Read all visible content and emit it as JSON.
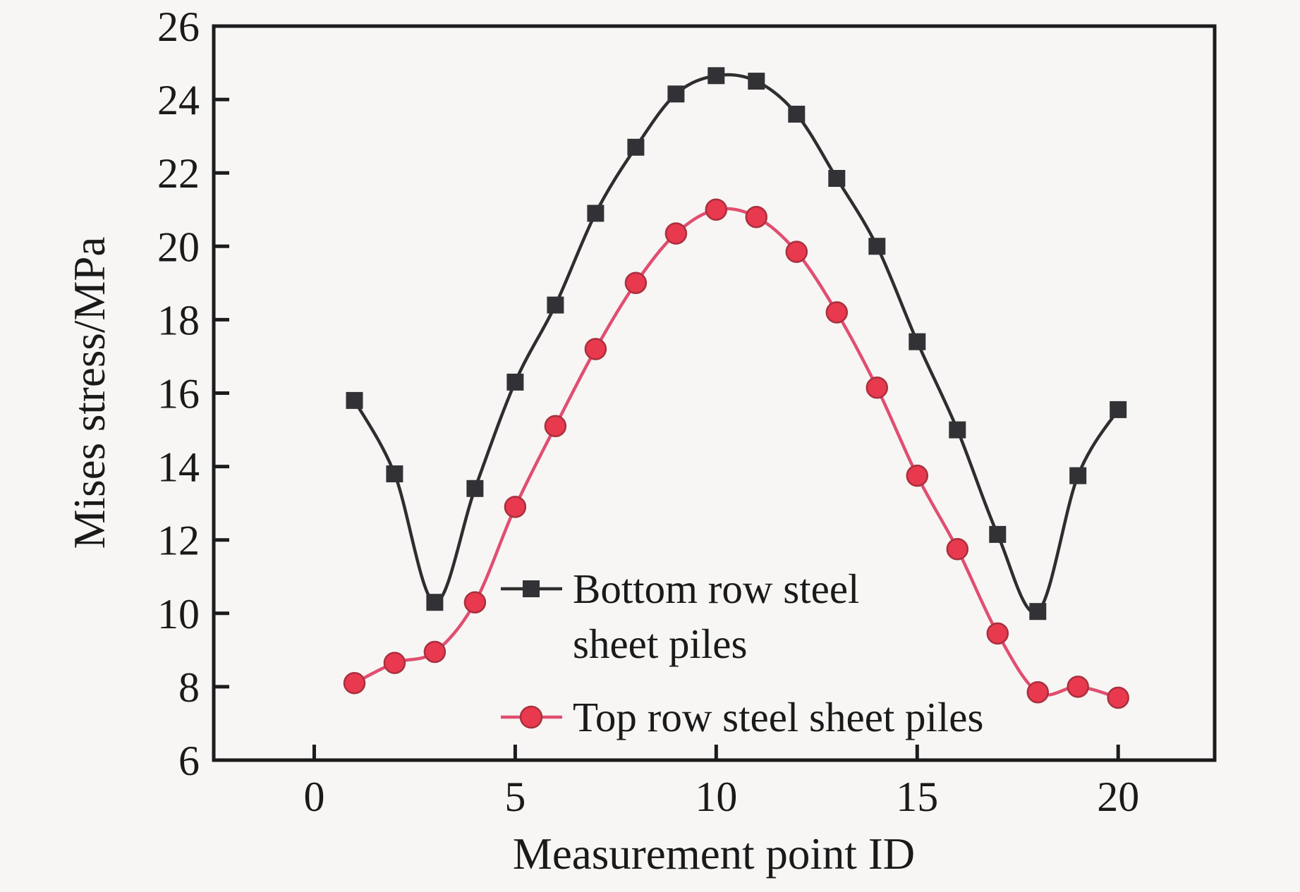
{
  "figure": {
    "background": "#f7f6f4",
    "frame_color": "#1c1c1e",
    "text_color": "#1a1a1a"
  },
  "chart_data": {
    "type": "line",
    "title": "",
    "xlabel": "Measurement point ID",
    "ylabel": "Mises stress/MPa",
    "x": [
      1,
      2,
      3,
      4,
      5,
      6,
      7,
      8,
      9,
      10,
      11,
      12,
      13,
      14,
      15,
      16,
      17,
      18,
      19,
      20
    ],
    "series": [
      {
        "name": "Bottom row steel sheet piles",
        "marker": "square",
        "line_color": "#2e2e31",
        "marker_color": "#323236",
        "values": [
          15.8,
          13.8,
          10.3,
          13.4,
          16.3,
          18.4,
          20.9,
          22.7,
          24.15,
          24.65,
          24.5,
          23.6,
          21.85,
          20.0,
          17.4,
          15.0,
          12.15,
          10.05,
          13.75,
          15.55
        ]
      },
      {
        "name": "Top row steel sheet piles",
        "marker": "circle",
        "line_color": "#e14e70",
        "marker_color": "#e9394e",
        "marker_edge_color": "#a8303e",
        "values": [
          8.1,
          8.65,
          8.95,
          10.3,
          12.9,
          15.1,
          17.2,
          19.0,
          20.35,
          21.0,
          20.8,
          19.85,
          18.2,
          16.15,
          13.75,
          11.75,
          9.45,
          7.85,
          8.0,
          7.7
        ]
      }
    ],
    "xlim": [
      -2.5,
      22.4
    ],
    "ylim": [
      6,
      26
    ],
    "x_ticks": [
      "0",
      "5",
      "10",
      "15",
      "20"
    ],
    "x_tick_values": [
      0,
      5,
      10,
      15,
      20
    ],
    "y_ticks": [
      "6",
      "8",
      "10",
      "12",
      "14",
      "16",
      "18",
      "20",
      "22",
      "24",
      "26"
    ],
    "y_tick_values": [
      6,
      8,
      10,
      12,
      14,
      16,
      18,
      20,
      22,
      24,
      26
    ],
    "grid": false,
    "legend_position": "inside-lower-center",
    "legend": [
      {
        "line1": "Bottom row steel",
        "line2": "sheet piles"
      },
      {
        "line1": "Top row steel sheet piles",
        "line2": ""
      }
    ]
  }
}
